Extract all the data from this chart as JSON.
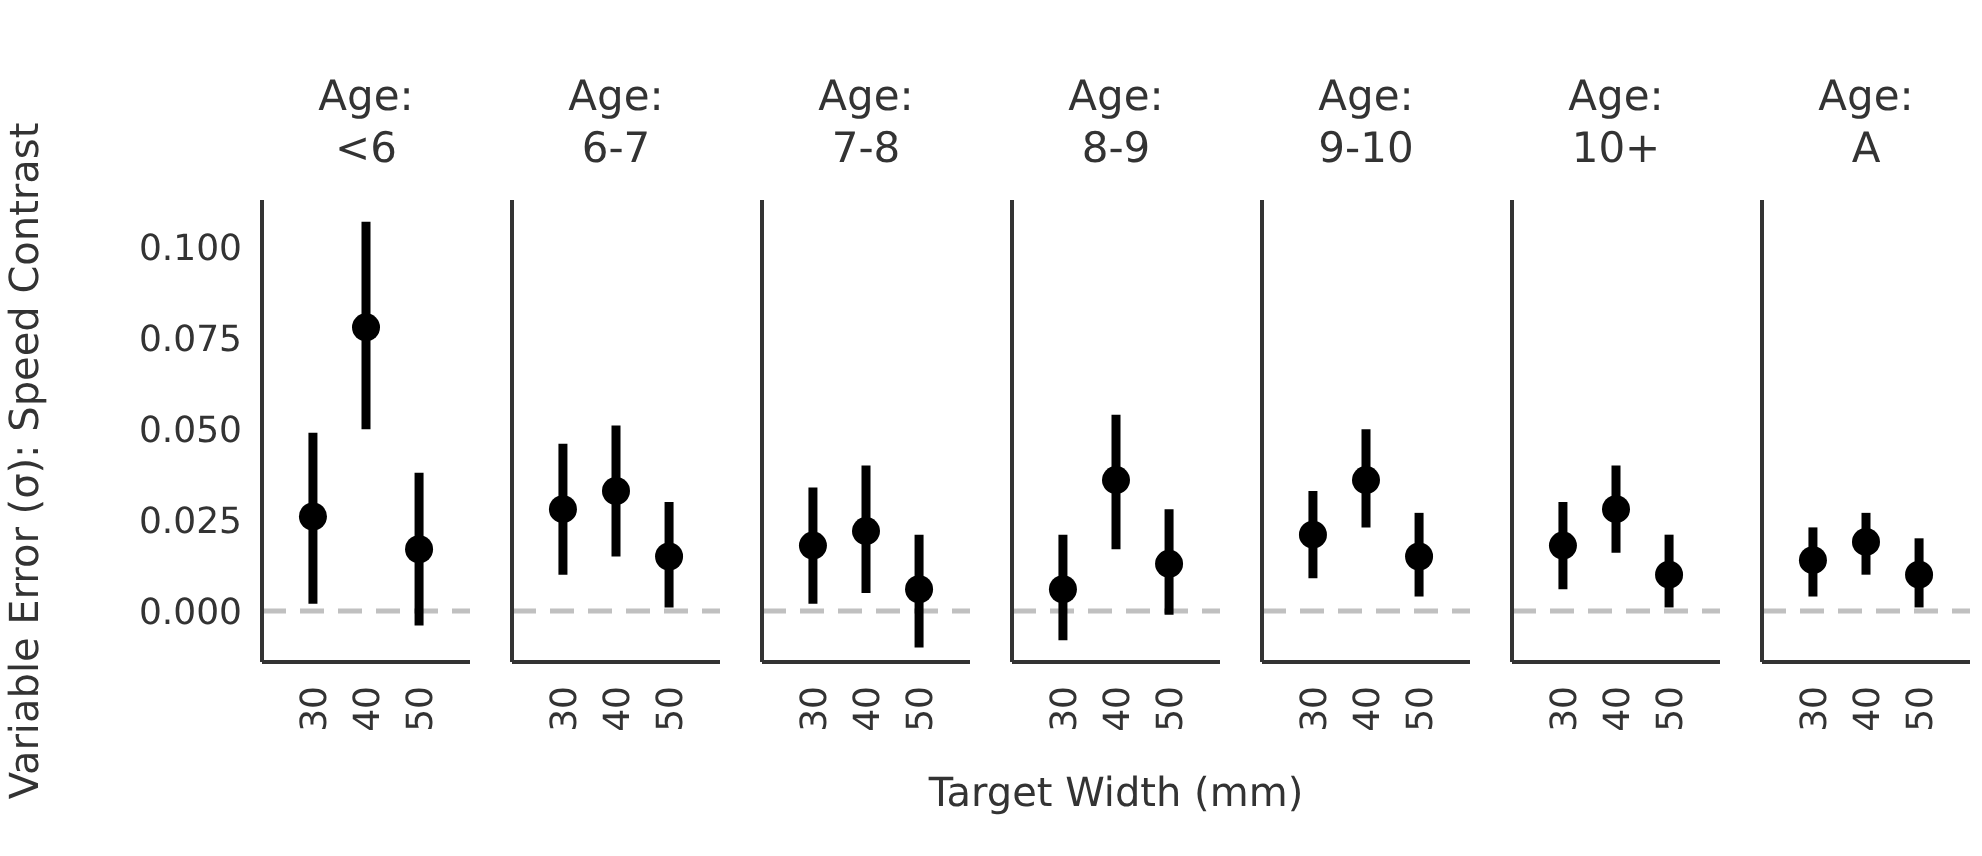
{
  "chart_data": [
    {
      "type": "scatter",
      "title": "Age:\n<6",
      "ylabel": "Variable Error (σ): Speed Contrast",
      "categories": [
        "30",
        "40",
        "50"
      ],
      "ylim": [
        -0.014,
        0.113
      ],
      "yticks": [
        {
          "value": 0,
          "label": "0.000"
        },
        {
          "value": 0.025,
          "label": "0.025"
        },
        {
          "value": 0.05,
          "label": "0.050"
        },
        {
          "value": 0.075,
          "label": "0.075"
        },
        {
          "value": 0.1,
          "label": "0.100"
        }
      ],
      "marker": "circle",
      "series": [
        {
          "color": "#000000",
          "values": [
            0.026,
            0.078,
            0.017
          ],
          "errors": [
            [
              0.002,
              0.049
            ],
            [
              0.05,
              0.107
            ],
            [
              -0.004,
              0.038
            ]
          ]
        }
      ],
      "ref_lines": [
        {
          "axis": "y",
          "value": 0,
          "color": "#c0c0c0",
          "line_style": "dashed"
        }
      ]
    },
    {
      "type": "scatter",
      "title": "Age:\n6-7",
      "categories": [
        "30",
        "40",
        "50"
      ],
      "ylim": [
        -0.014,
        0.113
      ],
      "tick_labels": "x",
      "marker": "circle",
      "series": [
        {
          "color": "#000000",
          "values": [
            0.028,
            0.033,
            0.015
          ],
          "errors": [
            [
              0.01,
              0.046
            ],
            [
              0.015,
              0.051
            ],
            [
              0.001,
              0.03
            ]
          ]
        }
      ],
      "ref_lines": [
        {
          "axis": "y",
          "value": 0,
          "color": "#c0c0c0",
          "line_style": "dashed"
        }
      ]
    },
    {
      "type": "scatter",
      "title": "Age:\n7-8",
      "categories": [
        "30",
        "40",
        "50"
      ],
      "ylim": [
        -0.014,
        0.113
      ],
      "tick_labels": "x",
      "marker": "circle",
      "series": [
        {
          "color": "#000000",
          "values": [
            0.018,
            0.022,
            0.006
          ],
          "errors": [
            [
              0.002,
              0.034
            ],
            [
              0.005,
              0.04
            ],
            [
              -0.01,
              0.021
            ]
          ]
        }
      ],
      "ref_lines": [
        {
          "axis": "y",
          "value": 0,
          "color": "#c0c0c0",
          "line_style": "dashed"
        }
      ]
    },
    {
      "type": "scatter",
      "title": "Age:\n8-9",
      "xlabel": "Target Width (mm)",
      "categories": [
        "30",
        "40",
        "50"
      ],
      "ylim": [
        -0.014,
        0.113
      ],
      "tick_labels": "x",
      "marker": "circle",
      "series": [
        {
          "color": "#000000",
          "values": [
            0.006,
            0.036,
            0.013
          ],
          "errors": [
            [
              -0.008,
              0.021
            ],
            [
              0.017,
              0.054
            ],
            [
              -0.001,
              0.028
            ]
          ]
        }
      ],
      "ref_lines": [
        {
          "axis": "y",
          "value": 0,
          "color": "#c0c0c0",
          "line_style": "dashed"
        }
      ]
    },
    {
      "type": "scatter",
      "title": "Age:\n9-10",
      "categories": [
        "30",
        "40",
        "50"
      ],
      "ylim": [
        -0.014,
        0.113
      ],
      "tick_labels": "x",
      "marker": "circle",
      "series": [
        {
          "color": "#000000",
          "values": [
            0.021,
            0.036,
            0.015
          ],
          "errors": [
            [
              0.009,
              0.033
            ],
            [
              0.023,
              0.05
            ],
            [
              0.004,
              0.027
            ]
          ]
        }
      ],
      "ref_lines": [
        {
          "axis": "y",
          "value": 0,
          "color": "#c0c0c0",
          "line_style": "dashed"
        }
      ]
    },
    {
      "type": "scatter",
      "title": "Age:\n10+",
      "categories": [
        "30",
        "40",
        "50"
      ],
      "ylim": [
        -0.014,
        0.113
      ],
      "tick_labels": "x",
      "marker": "circle",
      "series": [
        {
          "color": "#000000",
          "values": [
            0.018,
            0.028,
            0.01
          ],
          "errors": [
            [
              0.006,
              0.03
            ],
            [
              0.016,
              0.04
            ],
            [
              0.001,
              0.021
            ]
          ]
        }
      ],
      "ref_lines": [
        {
          "axis": "y",
          "value": 0,
          "color": "#c0c0c0",
          "line_style": "dashed"
        }
      ]
    },
    {
      "type": "scatter",
      "title": "Age:\nA",
      "categories": [
        "30",
        "40",
        "50"
      ],
      "ylim": [
        -0.014,
        0.113
      ],
      "tick_labels": "x",
      "marker": "circle",
      "series": [
        {
          "color": "#000000",
          "values": [
            0.014,
            0.019,
            0.01
          ],
          "errors": [
            [
              0.004,
              0.023
            ],
            [
              0.01,
              0.027
            ],
            [
              0.001,
              0.02
            ]
          ]
        }
      ],
      "ref_lines": [
        {
          "axis": "y",
          "value": 0,
          "color": "#c0c0c0",
          "line_style": "dashed"
        }
      ]
    }
  ]
}
